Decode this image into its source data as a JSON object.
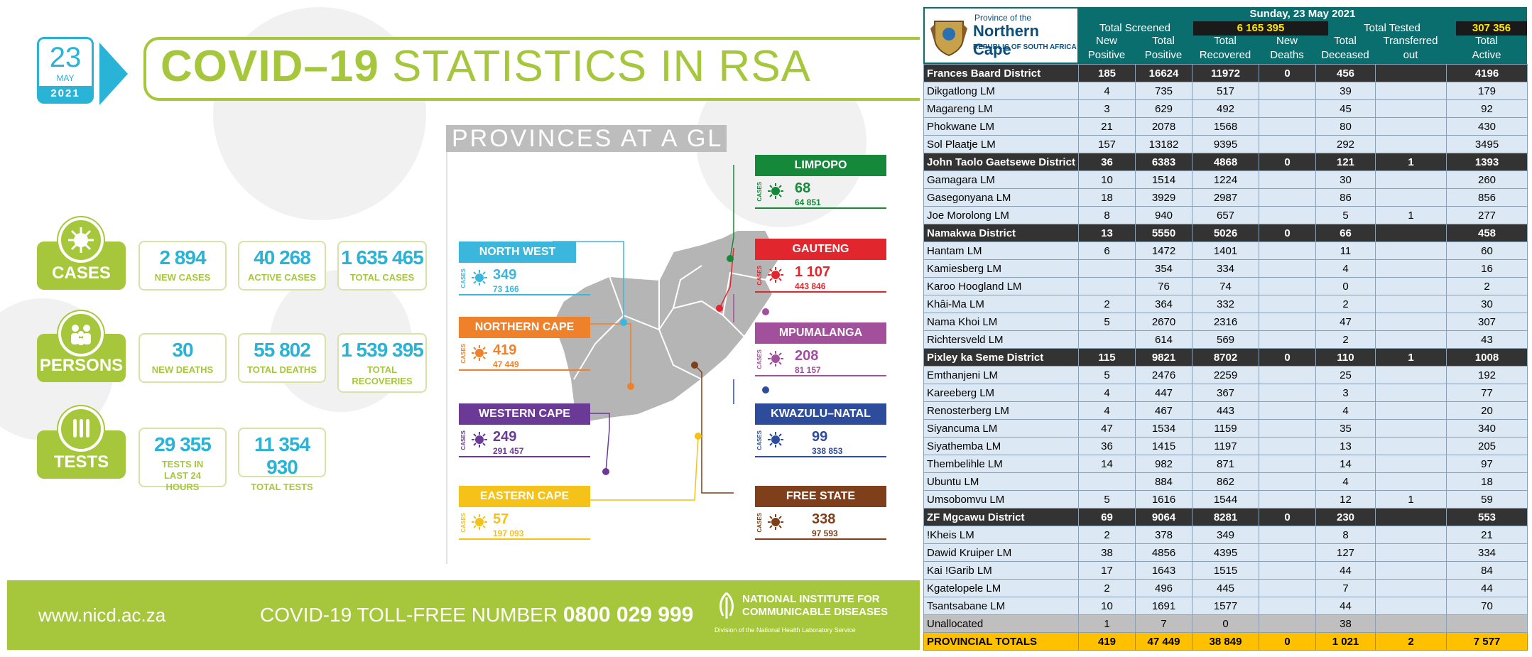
{
  "date": {
    "day": "23",
    "month": "MAY",
    "year": "2021"
  },
  "title": {
    "bold": "COVID–19",
    "light": "STATISTICS IN RSA"
  },
  "stats": {
    "cases": {
      "label": "CASES",
      "items": [
        {
          "value": "2 894",
          "label": "NEW CASES"
        },
        {
          "value": "40 268",
          "label": "ACTIVE CASES"
        },
        {
          "value": "1 635 465",
          "label": "TOTAL CASES"
        }
      ]
    },
    "persons": {
      "label": "PERSONS",
      "items": [
        {
          "value": "30",
          "label": "NEW DEATHS"
        },
        {
          "value": "55 802",
          "label": "TOTAL DEATHS"
        },
        {
          "value": "1 539 395",
          "label": "TOTAL RECOVERIES"
        }
      ]
    },
    "tests": {
      "label": "TESTS",
      "items": [
        {
          "value": "29 355",
          "label": "TESTS IN LAST 24 HOURS"
        },
        {
          "value": "11 354 930",
          "label": "TOTAL TESTS"
        }
      ]
    }
  },
  "provinces_title": "PROVINCES AT A GL",
  "provinces": {
    "cases_tag": "CASES",
    "list": [
      {
        "name": "NORTH WEST",
        "new": "349",
        "total": "73 166",
        "color": "#3bb6dc"
      },
      {
        "name": "NORTHERN CAPE",
        "new": "419",
        "total": "47 449",
        "color": "#f0812b"
      },
      {
        "name": "WESTERN CAPE",
        "new": "249",
        "total": "291 457",
        "color": "#6b3a96"
      },
      {
        "name": "EASTERN CAPE",
        "new": "57",
        "total": "197 093",
        "color": "#f5c21a"
      },
      {
        "name": "LIMPOPO",
        "new": "68",
        "total": "64 851",
        "color": "#15883a"
      },
      {
        "name": "GAUTENG",
        "new": "1 107",
        "total": "443 846",
        "color": "#e1262d"
      },
      {
        "name": "MPUMALANGA",
        "new": "208",
        "total": "81 157",
        "color": "#a24f9c"
      },
      {
        "name": "KWAZULU–NATAL",
        "new": "99",
        "total": "338 853",
        "color": "#2d4c9b"
      },
      {
        "name": "FREE STATE",
        "new": "338",
        "total": "97 593",
        "color": "#7e3f1a"
      }
    ]
  },
  "footer": {
    "url": "www.nicd.ac.za",
    "hotline_label": "COVID-19 TOLL-FREE NUMBER",
    "hotline_number": "0800 029 999",
    "institute_line1": "NATIONAL INSTITUTE FOR",
    "institute_line2": "COMMUNICABLE DISEASES",
    "institute_sub": "Division of the National Health Laboratory Service"
  },
  "table": {
    "province_of": "Province of the",
    "province_name": "Northern Cape",
    "republic": "REPUBLIC OF SOUTH AFRICA",
    "date_line": "Sunday, 23 May 2021",
    "total_screened_label": "Total Screened",
    "total_screened_value": "6 165 395",
    "total_tested_label": "Total Tested",
    "total_tested_value": "307 356",
    "columns": [
      {
        "l1": "New",
        "l2": "Positive"
      },
      {
        "l1": "Total",
        "l2": "Positive"
      },
      {
        "l1": "Total",
        "l2": "Recovered"
      },
      {
        "l1": "New",
        "l2": "Deaths"
      },
      {
        "l1": "Total",
        "l2": "Deceased"
      },
      {
        "l1": "Transferred",
        "l2": "out"
      },
      {
        "l1": "Total",
        "l2": "Active"
      }
    ],
    "rows": [
      {
        "type": "dist",
        "cells": [
          "Frances Baard District",
          "185",
          "16624",
          "11972",
          "0",
          "456",
          "",
          "4196"
        ]
      },
      {
        "type": "lm",
        "cells": [
          "Dikgatlong LM",
          "4",
          "735",
          "517",
          "",
          "39",
          "",
          "179"
        ]
      },
      {
        "type": "lm",
        "cells": [
          "Magareng LM",
          "3",
          "629",
          "492",
          "",
          "45",
          "",
          "92"
        ]
      },
      {
        "type": "lm",
        "cells": [
          "Phokwane LM",
          "21",
          "2078",
          "1568",
          "",
          "80",
          "",
          "430"
        ]
      },
      {
        "type": "lm",
        "cells": [
          "Sol Plaatje LM",
          "157",
          "13182",
          "9395",
          "",
          "292",
          "",
          "3495"
        ]
      },
      {
        "type": "dist",
        "cells": [
          "John Taolo Gaetsewe District",
          "36",
          "6383",
          "4868",
          "0",
          "121",
          "1",
          "1393"
        ]
      },
      {
        "type": "lm",
        "cells": [
          "Gamagara LM",
          "10",
          "1514",
          "1224",
          "",
          "30",
          "",
          "260"
        ]
      },
      {
        "type": "lm",
        "cells": [
          "Gasegonyana LM",
          "18",
          "3929",
          "2987",
          "",
          "86",
          "",
          "856"
        ]
      },
      {
        "type": "lm",
        "cells": [
          "Joe Morolong LM",
          "8",
          "940",
          "657",
          "",
          "5",
          "1",
          "277"
        ]
      },
      {
        "type": "dist",
        "cells": [
          "Namakwa District",
          "13",
          "5550",
          "5026",
          "0",
          "66",
          "",
          "458"
        ]
      },
      {
        "type": "lm",
        "cells": [
          "Hantam LM",
          "6",
          "1472",
          "1401",
          "",
          "11",
          "",
          "60"
        ]
      },
      {
        "type": "lm",
        "cells": [
          "Kamiesberg LM",
          "",
          "354",
          "334",
          "",
          "4",
          "",
          "16"
        ]
      },
      {
        "type": "lm",
        "cells": [
          "Karoo Hoogland LM",
          "",
          "76",
          "74",
          "",
          "0",
          "",
          "2"
        ]
      },
      {
        "type": "lm",
        "cells": [
          "Khâi-Ma LM",
          "2",
          "364",
          "332",
          "",
          "2",
          "",
          "30"
        ]
      },
      {
        "type": "lm",
        "cells": [
          "Nama Khoi LM",
          "5",
          "2670",
          "2316",
          "",
          "47",
          "",
          "307"
        ]
      },
      {
        "type": "lm",
        "cells": [
          "Richtersveld LM",
          "",
          "614",
          "569",
          "",
          "2",
          "",
          "43"
        ]
      },
      {
        "type": "dist",
        "cells": [
          "Pixley ka Seme District",
          "115",
          "9821",
          "8702",
          "0",
          "110",
          "1",
          "1008"
        ]
      },
      {
        "type": "lm",
        "cells": [
          "Emthanjeni LM",
          "5",
          "2476",
          "2259",
          "",
          "25",
          "",
          "192"
        ]
      },
      {
        "type": "lm",
        "cells": [
          "Kareeberg LM",
          "4",
          "447",
          "367",
          "",
          "3",
          "",
          "77"
        ]
      },
      {
        "type": "lm",
        "cells": [
          "Renosterberg LM",
          "4",
          "467",
          "443",
          "",
          "4",
          "",
          "20"
        ]
      },
      {
        "type": "lm",
        "cells": [
          "Siyancuma LM",
          "47",
          "1534",
          "1159",
          "",
          "35",
          "",
          "340"
        ]
      },
      {
        "type": "lm",
        "cells": [
          "Siyathemba LM",
          "36",
          "1415",
          "1197",
          "",
          "13",
          "",
          "205"
        ]
      },
      {
        "type": "lm",
        "cells": [
          "Thembelihle LM",
          "14",
          "982",
          "871",
          "",
          "14",
          "",
          "97"
        ]
      },
      {
        "type": "lm",
        "cells": [
          "Ubuntu LM",
          "",
          "884",
          "862",
          "",
          "4",
          "",
          "18"
        ]
      },
      {
        "type": "lm",
        "cells": [
          "Umsobomvu LM",
          "5",
          "1616",
          "1544",
          "",
          "12",
          "1",
          "59"
        ]
      },
      {
        "type": "dist",
        "cells": [
          "ZF Mgcawu District",
          "69",
          "9064",
          "8281",
          "0",
          "230",
          "",
          "553"
        ]
      },
      {
        "type": "lm",
        "cells": [
          "!Kheis LM",
          "2",
          "378",
          "349",
          "",
          "8",
          "",
          "21"
        ]
      },
      {
        "type": "lm",
        "cells": [
          "Dawid Kruiper LM",
          "38",
          "4856",
          "4395",
          "",
          "127",
          "",
          "334"
        ]
      },
      {
        "type": "lm",
        "cells": [
          "Kai !Garib LM",
          "17",
          "1643",
          "1515",
          "",
          "44",
          "",
          "84"
        ]
      },
      {
        "type": "lm",
        "cells": [
          "Kgatelopele LM",
          "2",
          "496",
          "445",
          "",
          "7",
          "",
          "44"
        ]
      },
      {
        "type": "lm",
        "cells": [
          "Tsantsabane LM",
          "10",
          "1691",
          "1577",
          "",
          "44",
          "",
          "70"
        ]
      },
      {
        "type": "unalloc",
        "cells": [
          "Unallocated",
          "1",
          "7",
          "0",
          "",
          "38",
          "",
          ""
        ]
      },
      {
        "type": "total",
        "cells": [
          "PROVINCIAL TOTALS",
          "419",
          "47 449",
          "38 849",
          "0",
          "1 021",
          "2",
          "7 577"
        ]
      }
    ]
  }
}
